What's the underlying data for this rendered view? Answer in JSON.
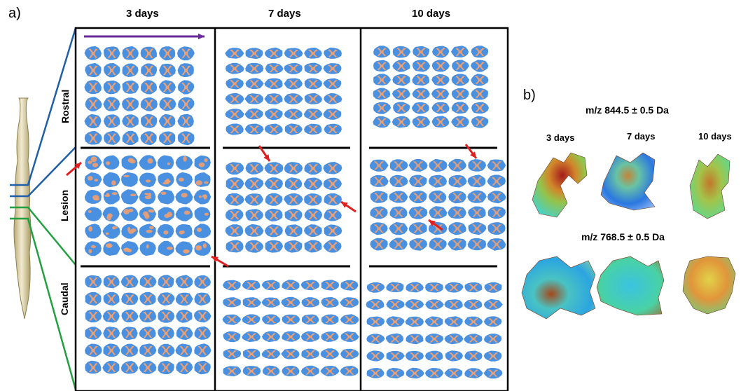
{
  "panel_a": {
    "label": "a)",
    "days": [
      "3 days",
      "7 days",
      "10 days"
    ],
    "regions": [
      "Rostral",
      "Lesion",
      "Caudal"
    ]
  },
  "panel_b": {
    "label": "b)",
    "mz1": "m/z 844.5 ± 0.5 Da",
    "mz2": "m/z 768.5 ± 0.5 Da",
    "days": [
      "3 days",
      "7 days",
      "10 days"
    ]
  },
  "colors": {
    "section_blue": "#4a90e0",
    "tissue_orange": "#f0a070",
    "arrow_red": "#e02020",
    "arrow_purple": "#6a2a9a",
    "line_blue": "#1f5fa8",
    "line_green": "#22a040",
    "spine": "#e8deb0"
  }
}
